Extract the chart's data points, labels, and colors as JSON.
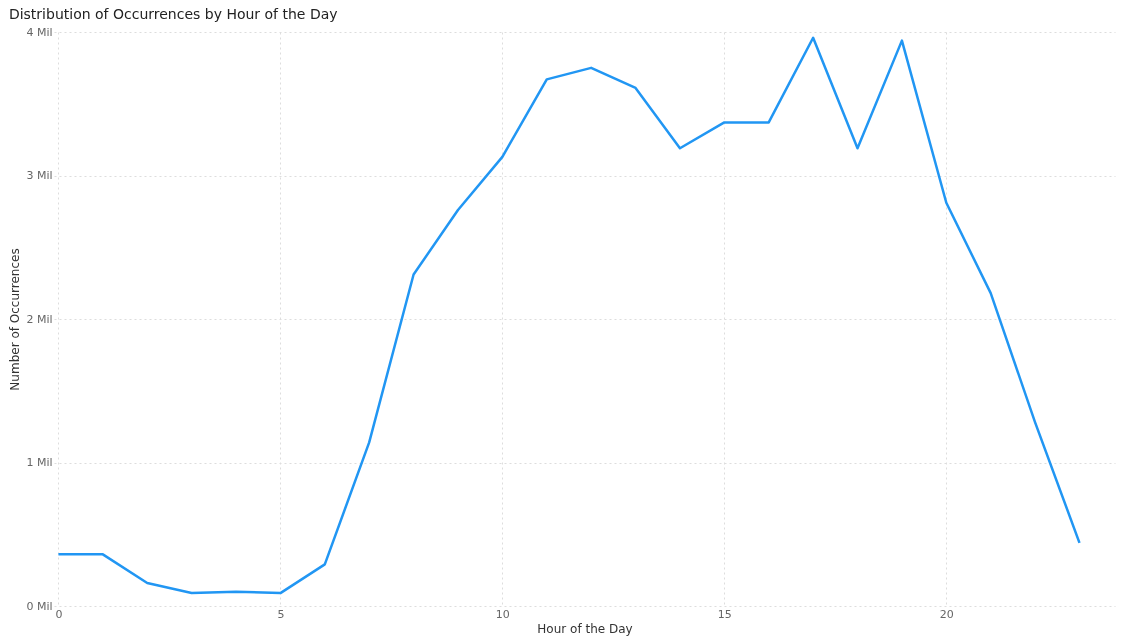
{
  "chart_data": {
    "type": "line",
    "title": "Distribution of Occurrences by Hour of the Day",
    "xlabel": "Hour of the Day",
    "ylabel": "Number of Occurrences",
    "x": [
      0,
      1,
      2,
      3,
      4,
      5,
      6,
      7,
      8,
      9,
      10,
      11,
      12,
      13,
      14,
      15,
      16,
      17,
      18,
      19,
      20,
      21,
      22,
      23
    ],
    "series": [
      {
        "color": "#2196f3",
        "values": [
          0.36,
          0.36,
          0.16,
          0.09,
          0.1,
          0.09,
          0.29,
          1.14,
          2.31,
          2.76,
          3.13,
          3.67,
          3.75,
          3.61,
          3.19,
          3.37,
          3.37,
          3.96,
          3.19,
          3.94,
          2.81,
          2.18,
          1.28,
          0.44
        ]
      }
    ],
    "xlim": [
      -0.1,
      23.8
    ],
    "xticks": [
      0,
      5,
      10,
      15,
      20
    ],
    "ylim": [
      0,
      4
    ],
    "yticks": [
      {
        "value": 0,
        "label": "0 Mil"
      },
      {
        "value": 1,
        "label": "1 Mil"
      },
      {
        "value": 2,
        "label": "2 Mil"
      },
      {
        "value": 3,
        "label": "3 Mil"
      },
      {
        "value": 4,
        "label": "4 Mil"
      }
    ],
    "grid": true,
    "marker": "none",
    "line_style": "solid"
  }
}
